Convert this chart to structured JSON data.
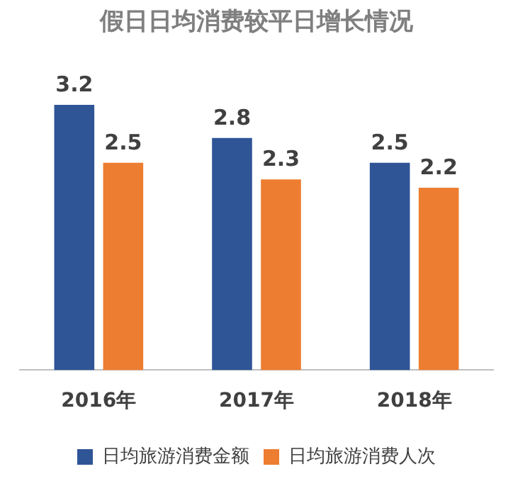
{
  "chart_data": {
    "type": "bar",
    "title": "假日日均消费较平日增长情况",
    "categories": [
      "2016年",
      "2017年",
      "2018年"
    ],
    "series": [
      {
        "name": "日均旅游消费金额",
        "color": "#2f5597",
        "values": [
          3.2,
          2.8,
          2.5
        ]
      },
      {
        "name": "日均旅游消费人次",
        "color": "#ed7d31",
        "values": [
          2.5,
          2.3,
          2.2
        ]
      }
    ],
    "data_labels": true,
    "legend": "bottom",
    "grid": false,
    "tick_labels": "x"
  }
}
